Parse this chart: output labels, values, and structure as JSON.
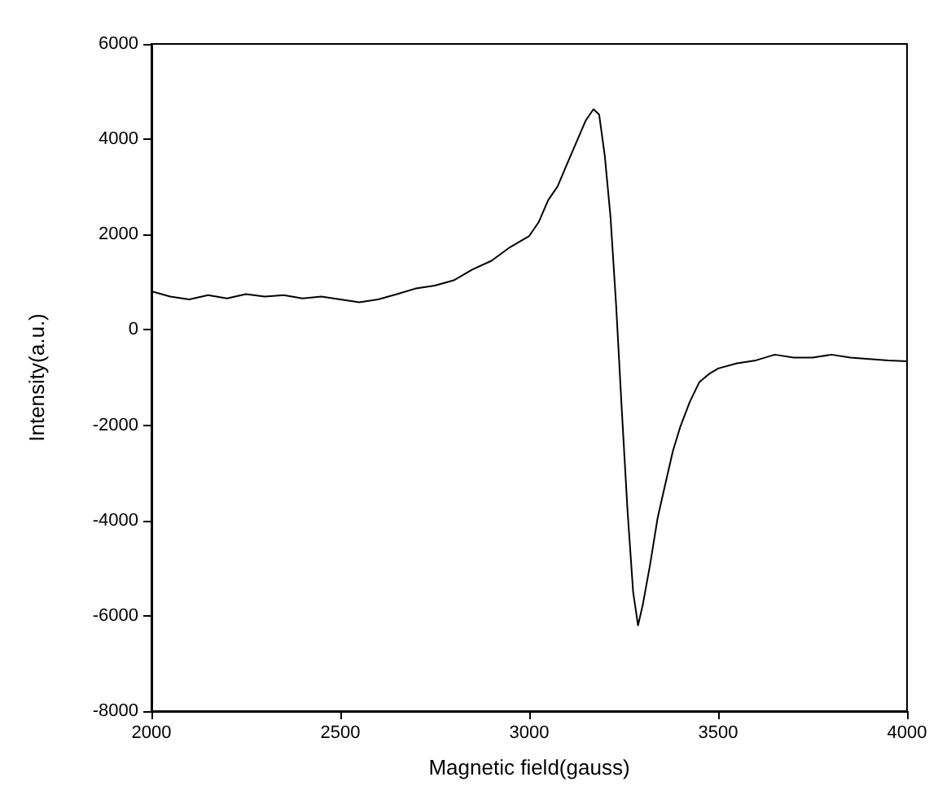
{
  "chart_data": {
    "type": "line",
    "xlabel": "Magnetic field(gauss)",
    "ylabel": "Intensity(a.u.)",
    "xlim": [
      2000,
      4000
    ],
    "xticks": [
      2000,
      2500,
      3000,
      3500,
      4000
    ],
    "ylim": [
      -8000,
      6000
    ],
    "yticks": [
      -8000,
      -6000,
      -4000,
      -2000,
      0,
      2000,
      4000,
      6000
    ],
    "grid": false,
    "marker": "none",
    "line_style": "solid",
    "series": [
      {
        "color": "#000000",
        "x": [
          2000,
          2050,
          2100,
          2150,
          2200,
          2250,
          2300,
          2350,
          2400,
          2450,
          2500,
          2550,
          2600,
          2650,
          2700,
          2750,
          2800,
          2850,
          2900,
          2950,
          3000,
          3025,
          3050,
          3075,
          3100,
          3125,
          3150,
          3170,
          3185,
          3200,
          3215,
          3230,
          3245,
          3260,
          3275,
          3288,
          3300,
          3320,
          3340,
          3360,
          3380,
          3400,
          3425,
          3450,
          3475,
          3500,
          3550,
          3600,
          3650,
          3700,
          3750,
          3800,
          3850,
          3900,
          3950,
          4000
        ],
        "values": [
          810,
          700,
          640,
          730,
          660,
          750,
          700,
          730,
          660,
          700,
          640,
          580,
          640,
          750,
          870,
          930,
          1040,
          1270,
          1450,
          1740,
          1970,
          2260,
          2720,
          3010,
          3480,
          3940,
          4400,
          4630,
          4520,
          3650,
          2380,
          520,
          -1680,
          -3770,
          -5500,
          -6200,
          -5790,
          -4920,
          -3940,
          -3240,
          -2550,
          -2030,
          -1510,
          -1100,
          -930,
          -810,
          -700,
          -640,
          -520,
          -580,
          -580,
          -520,
          -580,
          -610,
          -640,
          -660
        ]
      }
    ]
  }
}
